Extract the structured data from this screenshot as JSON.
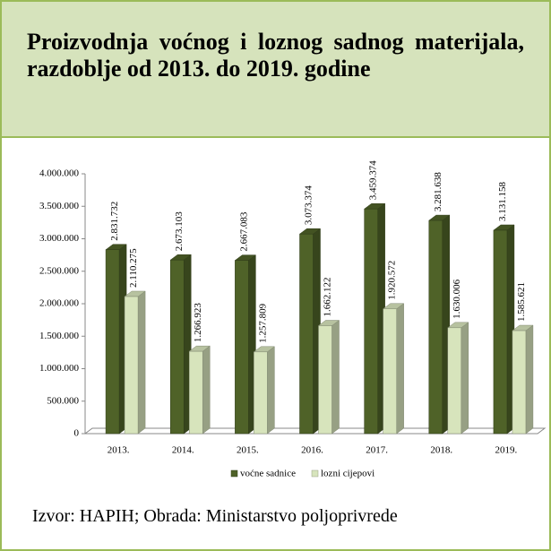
{
  "chart_data": {
    "type": "bar3d",
    "title": "Proizvodnja voćnog i loznog sadnog materijala, razdoblje od 2013. do 2019. godine",
    "source": "Izvor: HAPIH; Obrada: Ministarstvo poljoprivrede",
    "categories": [
      "2013.",
      "2014.",
      "2015.",
      "2016.",
      "2017.",
      "2018.",
      "2019."
    ],
    "series": [
      {
        "name": "voćne sadnice",
        "color": "#4f6228",
        "values": [
          2831732,
          2673103,
          2667083,
          3073374,
          3459374,
          3281638,
          3131158
        ],
        "value_labels": [
          "2.831.732",
          "2.673.103",
          "2.667.083",
          "3.073.374",
          "3.459.374",
          "3.281.638",
          "3.131.158"
        ]
      },
      {
        "name": "lozni cijepovi",
        "color": "#d7e4bc",
        "values": [
          2110275,
          1266923,
          1257809,
          1662122,
          1920572,
          1630006,
          1585621
        ],
        "value_labels": [
          "2.110.275",
          "1.266.923",
          "1.257.809",
          "1.662.122",
          "1.920.572",
          "1.630.006",
          "1.585.621"
        ]
      }
    ],
    "ylim": [
      0,
      4000000
    ],
    "yticks": [
      0,
      {
        "value": 500000,
        "label": "500.000"
      },
      {
        "value": 1000000,
        "label": "1.000.000"
      },
      {
        "value": 1500000,
        "label": "1.500.000"
      },
      {
        "value": 2000000,
        "label": "2.000.000"
      },
      {
        "value": 2500000,
        "label": "2.500.000"
      },
      {
        "value": 3000000,
        "label": "3.000.000"
      },
      {
        "value": 3500000,
        "label": "3.500.000"
      },
      {
        "value": 4000000,
        "label": "4.000.000"
      }
    ],
    "legend": "bottom"
  }
}
